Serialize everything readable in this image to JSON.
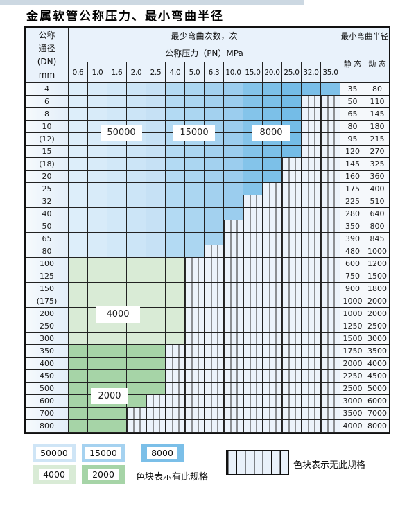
{
  "page": {
    "title": "金属软管公称压力、最小弯曲半径"
  },
  "table": {
    "dn_header_lines": [
      "公称",
      "通径",
      "(DN)",
      "mm"
    ],
    "cycles_title": "最少弯曲次数，次",
    "pressure_title": "公称压力（PN）MPa",
    "radius_title": "最小弯曲半径",
    "static_label": "静 态",
    "dynamic_label": "动 态"
  },
  "overlay_labels": [
    {
      "id": "50000",
      "text": "50000"
    },
    {
      "id": "15000",
      "text": "15000"
    },
    {
      "id": "8000",
      "text": "8000"
    },
    {
      "id": "4000",
      "text": "4000"
    },
    {
      "id": "2000",
      "text": "2000"
    }
  ],
  "legend": {
    "items": [
      {
        "cycles": "50000",
        "color_key": "c50000"
      },
      {
        "cycles": "15000",
        "color_key": "c15000"
      },
      {
        "cycles": "8000",
        "color_key": "c8000"
      },
      {
        "cycles": "4000",
        "color_key": "c4000"
      },
      {
        "cycles": "2000",
        "color_key": "c2000"
      }
    ],
    "has_spec_text": "色块表示有此规格",
    "no_spec_text": "色块表示无此规格"
  },
  "colors": {
    "c50000": "#cfe5f6",
    "c15000": "#a5d2f0",
    "c8000": "#7bbfe8",
    "c4000": "#d9ebd6",
    "c2000": "#a6d4a7",
    "grid": "#222222"
  },
  "chart_data": {
    "type": "heatmap",
    "title": "金属软管公称压力、最小弯曲半径",
    "x_label": "公称压力（PN）MPa",
    "x_ticks": [
      "0.6",
      "1.0",
      "1.6",
      "2.0",
      "2.5",
      "4.0",
      "5.0",
      "6.3",
      "10.0",
      "15.0",
      "20.0",
      "25.0",
      "32.0",
      "35.0"
    ],
    "y_label": "公称通径(DN) mm",
    "value_label": "最少弯曲次数，次",
    "radius_columns": [
      "静 态",
      "动 态"
    ],
    "blue_cycle_zones": [
      {
        "cycles": 50000,
        "pn_from": "0.6",
        "pn_to": "2.5"
      },
      {
        "cycles": 15000,
        "pn_from": "4.0",
        "pn_to": "10.0"
      },
      {
        "cycles": 8000,
        "pn_from": "15.0",
        "pn_to": "35.0"
      }
    ],
    "green_cycle_zones": [
      {
        "cycles": 4000,
        "dn_from": "100",
        "dn_to": "300"
      },
      {
        "cycles": 2000,
        "dn_from": "350",
        "dn_to": "800"
      }
    ],
    "rows": [
      {
        "dn": "4",
        "max_pn": "35.0",
        "zone": "blue",
        "static": 35,
        "dynamic": 80
      },
      {
        "dn": "6",
        "max_pn": "25.0",
        "zone": "blue",
        "static": 50,
        "dynamic": 110
      },
      {
        "dn": "8",
        "max_pn": "25.0",
        "zone": "blue",
        "static": 65,
        "dynamic": 145
      },
      {
        "dn": "10",
        "max_pn": "25.0",
        "zone": "blue",
        "static": 80,
        "dynamic": 180
      },
      {
        "dn": "(12)",
        "max_pn": "25.0",
        "zone": "blue",
        "static": 95,
        "dynamic": 215
      },
      {
        "dn": "15",
        "max_pn": "25.0",
        "zone": "blue",
        "static": 120,
        "dynamic": 270
      },
      {
        "dn": "(18)",
        "max_pn": "20.0",
        "zone": "blue",
        "static": 145,
        "dynamic": 325
      },
      {
        "dn": "20",
        "max_pn": "20.0",
        "zone": "blue",
        "static": 160,
        "dynamic": 360
      },
      {
        "dn": "25",
        "max_pn": "15.0",
        "zone": "blue",
        "static": 175,
        "dynamic": 400
      },
      {
        "dn": "32",
        "max_pn": "10.0",
        "zone": "blue",
        "static": 225,
        "dynamic": 510
      },
      {
        "dn": "40",
        "max_pn": "10.0",
        "zone": "blue",
        "static": 280,
        "dynamic": 640
      },
      {
        "dn": "50",
        "max_pn": "6.3",
        "zone": "blue",
        "static": 350,
        "dynamic": 800
      },
      {
        "dn": "65",
        "max_pn": "6.3",
        "zone": "blue",
        "static": 390,
        "dynamic": 845
      },
      {
        "dn": "80",
        "max_pn": "5.0",
        "zone": "blue",
        "static": 480,
        "dynamic": 1000
      },
      {
        "dn": "100",
        "max_pn": "4.0",
        "zone": "4000",
        "static": 600,
        "dynamic": 1200
      },
      {
        "dn": "125",
        "max_pn": "4.0",
        "zone": "4000",
        "static": 750,
        "dynamic": 1500
      },
      {
        "dn": "150",
        "max_pn": "4.0",
        "zone": "4000",
        "static": 900,
        "dynamic": 1800
      },
      {
        "dn": "(175)",
        "max_pn": "4.0",
        "zone": "4000",
        "static": 1000,
        "dynamic": 2000
      },
      {
        "dn": "200",
        "max_pn": "4.0",
        "zone": "4000",
        "static": 1000,
        "dynamic": 2000
      },
      {
        "dn": "250",
        "max_pn": "4.0",
        "zone": "4000",
        "static": 1250,
        "dynamic": 2500
      },
      {
        "dn": "300",
        "max_pn": "4.0",
        "zone": "4000",
        "static": 1500,
        "dynamic": 3000
      },
      {
        "dn": "350",
        "max_pn": "2.5",
        "zone": "2000",
        "static": 1750,
        "dynamic": 3500
      },
      {
        "dn": "400",
        "max_pn": "2.5",
        "zone": "2000",
        "static": 2000,
        "dynamic": 4000
      },
      {
        "dn": "450",
        "max_pn": "2.5",
        "zone": "2000",
        "static": 2250,
        "dynamic": 4500
      },
      {
        "dn": "500",
        "max_pn": "2.5",
        "zone": "2000",
        "static": 2500,
        "dynamic": 5000
      },
      {
        "dn": "600",
        "max_pn": "2.0",
        "zone": "2000",
        "static": 3000,
        "dynamic": 6000
      },
      {
        "dn": "700",
        "max_pn": "1.6",
        "zone": "2000",
        "static": 3500,
        "dynamic": 7000
      },
      {
        "dn": "800",
        "max_pn": "1.6",
        "zone": "2000",
        "static": 4000,
        "dynamic": 8000
      }
    ]
  }
}
